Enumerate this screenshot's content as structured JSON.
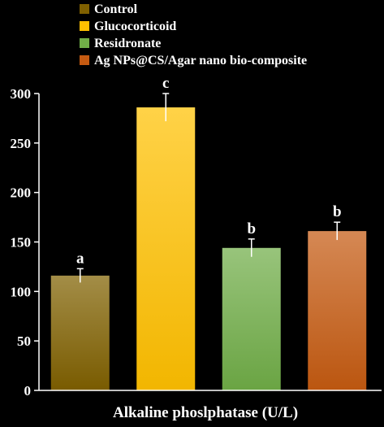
{
  "chart_data": {
    "type": "bar",
    "categories": [
      "Control",
      "Glucocorticoid",
      "Residronate",
      "Ag NPs@CS/Agar nano bio-composite"
    ],
    "values": [
      116,
      286,
      144,
      161
    ],
    "errors": [
      7,
      14,
      9,
      9
    ],
    "significance": [
      "a",
      "c",
      "b",
      "b"
    ],
    "colors": [
      "#7f6000",
      "#ffc000",
      "#70ad47",
      "#c55a11"
    ],
    "xlabel": "Alkaline phoslphatase (U/L)",
    "ylabel": "",
    "ylim": [
      0,
      300
    ],
    "yticks": [
      "0",
      "50",
      "100",
      "150",
      "200",
      "250",
      "300"
    ],
    "grid": false,
    "legend_placement": "top-left"
  }
}
